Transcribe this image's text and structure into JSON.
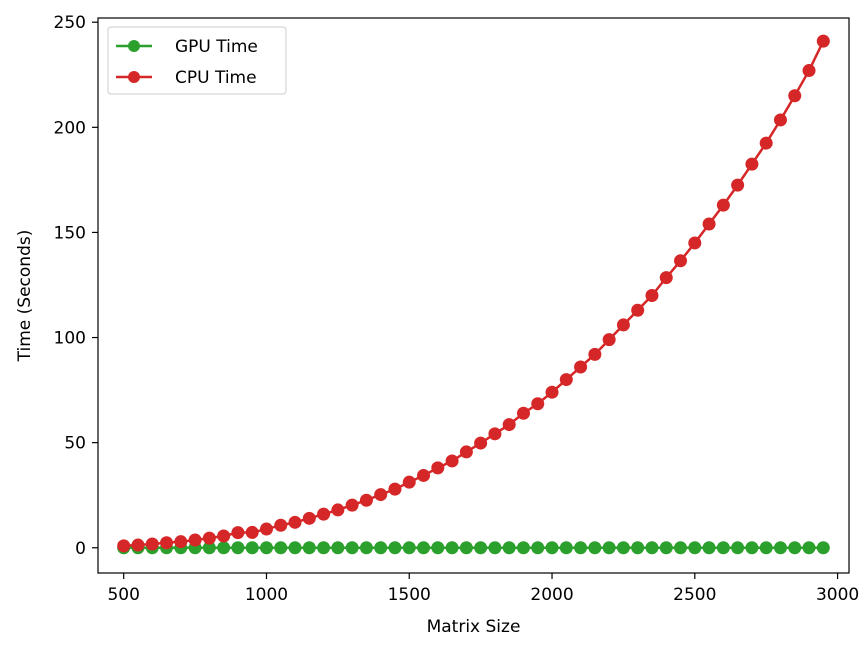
{
  "chart_data": {
    "type": "line",
    "title": "",
    "xlabel": "Matrix Size",
    "ylabel": "Time (Seconds)",
    "xlim": [
      410,
      3040
    ],
    "ylim": [
      -12,
      252
    ],
    "xticks": [
      500,
      1000,
      1500,
      2000,
      2500,
      3000
    ],
    "yticks": [
      0,
      50,
      100,
      150,
      200,
      250
    ],
    "grid": false,
    "legend_position": "top-left",
    "x": [
      500,
      550,
      600,
      650,
      700,
      750,
      800,
      850,
      900,
      950,
      1000,
      1050,
      1100,
      1150,
      1200,
      1250,
      1300,
      1350,
      1400,
      1450,
      1500,
      1550,
      1600,
      1650,
      1700,
      1750,
      1800,
      1850,
      1900,
      1950,
      2000,
      2050,
      2100,
      2150,
      2200,
      2250,
      2300,
      2350,
      2400,
      2450,
      2500,
      2550,
      2600,
      2650,
      2700,
      2750,
      2800,
      2850,
      2900,
      2950
    ],
    "series": [
      {
        "name": "GPU Time",
        "color": "#2ca02c",
        "values": [
          0,
          0,
          0,
          0,
          0,
          0,
          0,
          0,
          0,
          0,
          0,
          0,
          0,
          0,
          0,
          0,
          0,
          0,
          0,
          0,
          0,
          0,
          0,
          0,
          0,
          0,
          0,
          0,
          0,
          0,
          0,
          0,
          0,
          0,
          0,
          0,
          0,
          0,
          0,
          0,
          0,
          0,
          0,
          0,
          0,
          0,
          0,
          0,
          0,
          0
        ]
      },
      {
        "name": "CPU Time",
        "color": "#d62728",
        "values": [
          0.9,
          1.3,
          1.8,
          2.4,
          2.9,
          3.7,
          4.6,
          5.6,
          7.2,
          7.3,
          8.9,
          10.7,
          12.1,
          14.0,
          16.0,
          18.0,
          20.3,
          22.6,
          25.3,
          27.9,
          31.2,
          34.4,
          38.0,
          41.3,
          45.6,
          49.8,
          54.2,
          58.6,
          64.0,
          68.5,
          74.0,
          80.0,
          86.0,
          92.0,
          99.0,
          106.0,
          113.0,
          120.0,
          128.5,
          136.5,
          145.0,
          154.0,
          163.0,
          172.5,
          182.5,
          192.5,
          203.5,
          215.0,
          227.0,
          241.0
        ]
      }
    ]
  }
}
